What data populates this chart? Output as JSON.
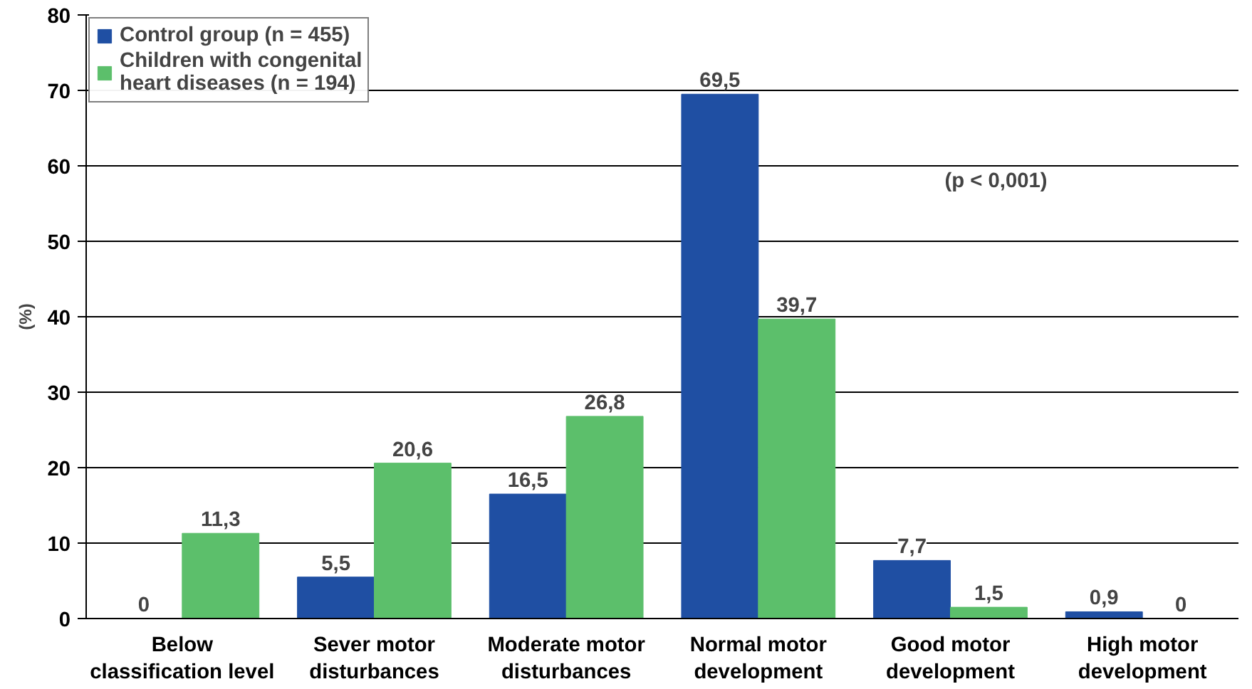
{
  "chart_data": {
    "type": "bar",
    "categories": [
      "Below\nclassification level",
      "Sever motor\ndisturbances",
      "Moderate motor\ndisturbances",
      "Normal motor\ndevelopment",
      "Good motor\ndevelopment",
      "High motor\ndevelopment"
    ],
    "series": [
      {
        "name": "Control group (n = 455)",
        "color": "#1f4fa3",
        "values": [
          0,
          5.5,
          16.5,
          69.5,
          7.7,
          0.9
        ],
        "value_labels": [
          "0",
          "5,5",
          "16,5",
          "69,5",
          "7,7",
          "0,9"
        ]
      },
      {
        "name": "Children with congenital\nheart diseases (n = 194)",
        "color": "#5cbf6b",
        "values": [
          11.3,
          20.6,
          26.8,
          39.7,
          1.5,
          0
        ],
        "value_labels": [
          "11,3",
          "20,6",
          "26,8",
          "39,7",
          "1,5",
          "0"
        ]
      }
    ],
    "ylabel": "(%)",
    "ylim": [
      0,
      80
    ],
    "yticks": [
      0,
      10,
      20,
      30,
      40,
      50,
      60,
      70,
      80
    ],
    "grid": "y",
    "legend": "top left",
    "annotations": [
      "(p < 0,001)"
    ]
  }
}
